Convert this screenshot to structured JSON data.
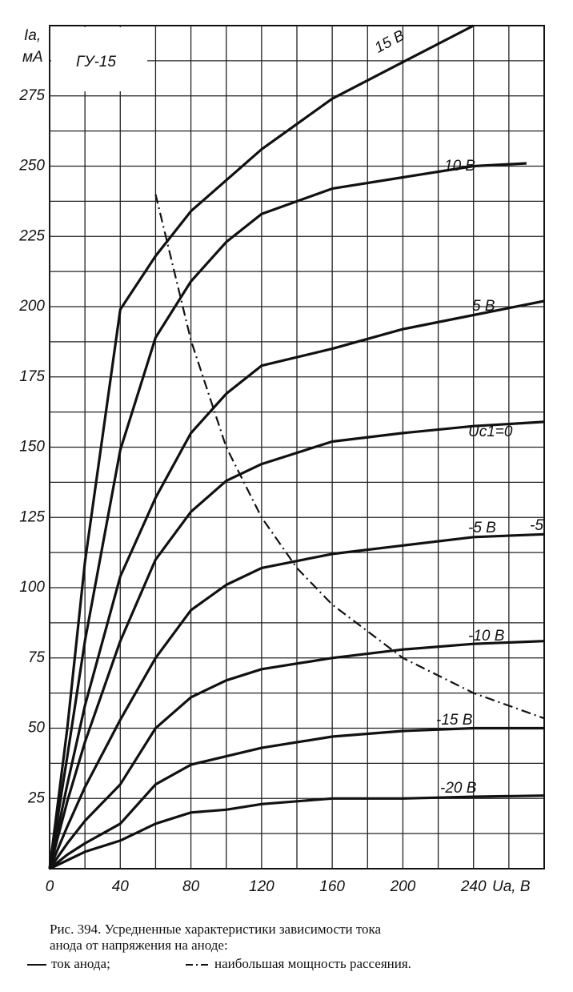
{
  "chart_data": {
    "type": "line",
    "annotation": "ГУ-15",
    "ylabel_top": "Iа,",
    "ylabel_unit": "мА",
    "xlabel": "Uа, В",
    "extra_label": "-5",
    "xlim": [
      0,
      280
    ],
    "ylim": [
      0,
      300
    ],
    "xticks": [
      0,
      40,
      80,
      120,
      160,
      200,
      240
    ],
    "yticks": [
      25,
      50,
      75,
      100,
      125,
      150,
      175,
      200,
      225,
      250,
      275
    ],
    "xminor": [
      20,
      60,
      100,
      140,
      180,
      220,
      260
    ],
    "yminor": [
      12.5,
      37.5,
      62.5,
      87.5,
      112.5,
      137.5,
      162.5,
      187.5,
      212.5,
      237.5,
      262.5,
      287.5
    ],
    "grid": true,
    "series": [
      {
        "name": "15 В",
        "color": "#111111",
        "x": [
          0,
          10,
          20,
          40,
          60,
          80,
          120,
          160,
          200,
          240
        ],
        "values": [
          0,
          50,
          109,
          199,
          218,
          234,
          256,
          274,
          287,
          300
        ]
      },
      {
        "name": "10 В",
        "color": "#111111",
        "x": [
          0,
          10,
          20,
          40,
          60,
          80,
          100,
          120,
          160,
          200,
          240,
          270
        ],
        "values": [
          0,
          40,
          81,
          149,
          189,
          209,
          223,
          233,
          242,
          246,
          250,
          251
        ]
      },
      {
        "name": "5 В",
        "color": "#111111",
        "x": [
          0,
          10,
          20,
          40,
          60,
          80,
          100,
          120,
          160,
          200,
          240,
          280
        ],
        "values": [
          0,
          30,
          58,
          104,
          132,
          155,
          169,
          179,
          185,
          192,
          197,
          202
        ]
      },
      {
        "name": "Uc1=0",
        "color": "#111111",
        "x": [
          0,
          10,
          20,
          40,
          60,
          80,
          100,
          120,
          160,
          200,
          240,
          280
        ],
        "values": [
          0,
          24,
          45,
          81,
          110,
          127,
          138,
          144,
          152,
          155,
          157.5,
          159
        ]
      },
      {
        "name": "-5 В",
        "color": "#111111",
        "x": [
          0,
          10,
          20,
          40,
          60,
          80,
          100,
          120,
          160,
          200,
          240,
          280
        ],
        "values": [
          0,
          15,
          29,
          53,
          75,
          92,
          101,
          107,
          112,
          115,
          118,
          119
        ]
      },
      {
        "name": "-10 В",
        "color": "#111111",
        "x": [
          0,
          10,
          20,
          40,
          60,
          80,
          100,
          120,
          160,
          200,
          240,
          280
        ],
        "values": [
          0,
          9,
          17,
          30,
          50,
          61,
          67,
          71,
          75,
          78,
          80,
          81
        ]
      },
      {
        "name": "-15 В",
        "color": "#111111",
        "x": [
          0,
          10,
          20,
          40,
          60,
          80,
          100,
          120,
          160,
          200,
          240,
          280
        ],
        "values": [
          0,
          5,
          9,
          16,
          30,
          37,
          40,
          43,
          47,
          49,
          50,
          50
        ]
      },
      {
        "name": "-20 В",
        "color": "#111111",
        "x": [
          0,
          10,
          20,
          40,
          60,
          80,
          100,
          120,
          160,
          200,
          240,
          280
        ],
        "values": [
          0,
          3,
          6,
          10,
          16,
          20,
          21,
          23,
          25,
          25,
          25.6,
          26
        ]
      },
      {
        "color": "#111111",
        "dash": "dashdot",
        "x": [
          60,
          70,
          80,
          100,
          120,
          140,
          160,
          200,
          240,
          280
        ],
        "values": [
          240,
          214,
          188,
          150,
          125,
          107,
          94,
          75,
          62.5,
          53.5
        ]
      }
    ],
    "caption": [
      "Рис. 394. Усредненные характеристики зависимости тока",
      "анода от напряжения на аноде:"
    ],
    "legend_solid": "ток анода;",
    "legend_dashdot": "наибольшая мощность рассеяния."
  }
}
